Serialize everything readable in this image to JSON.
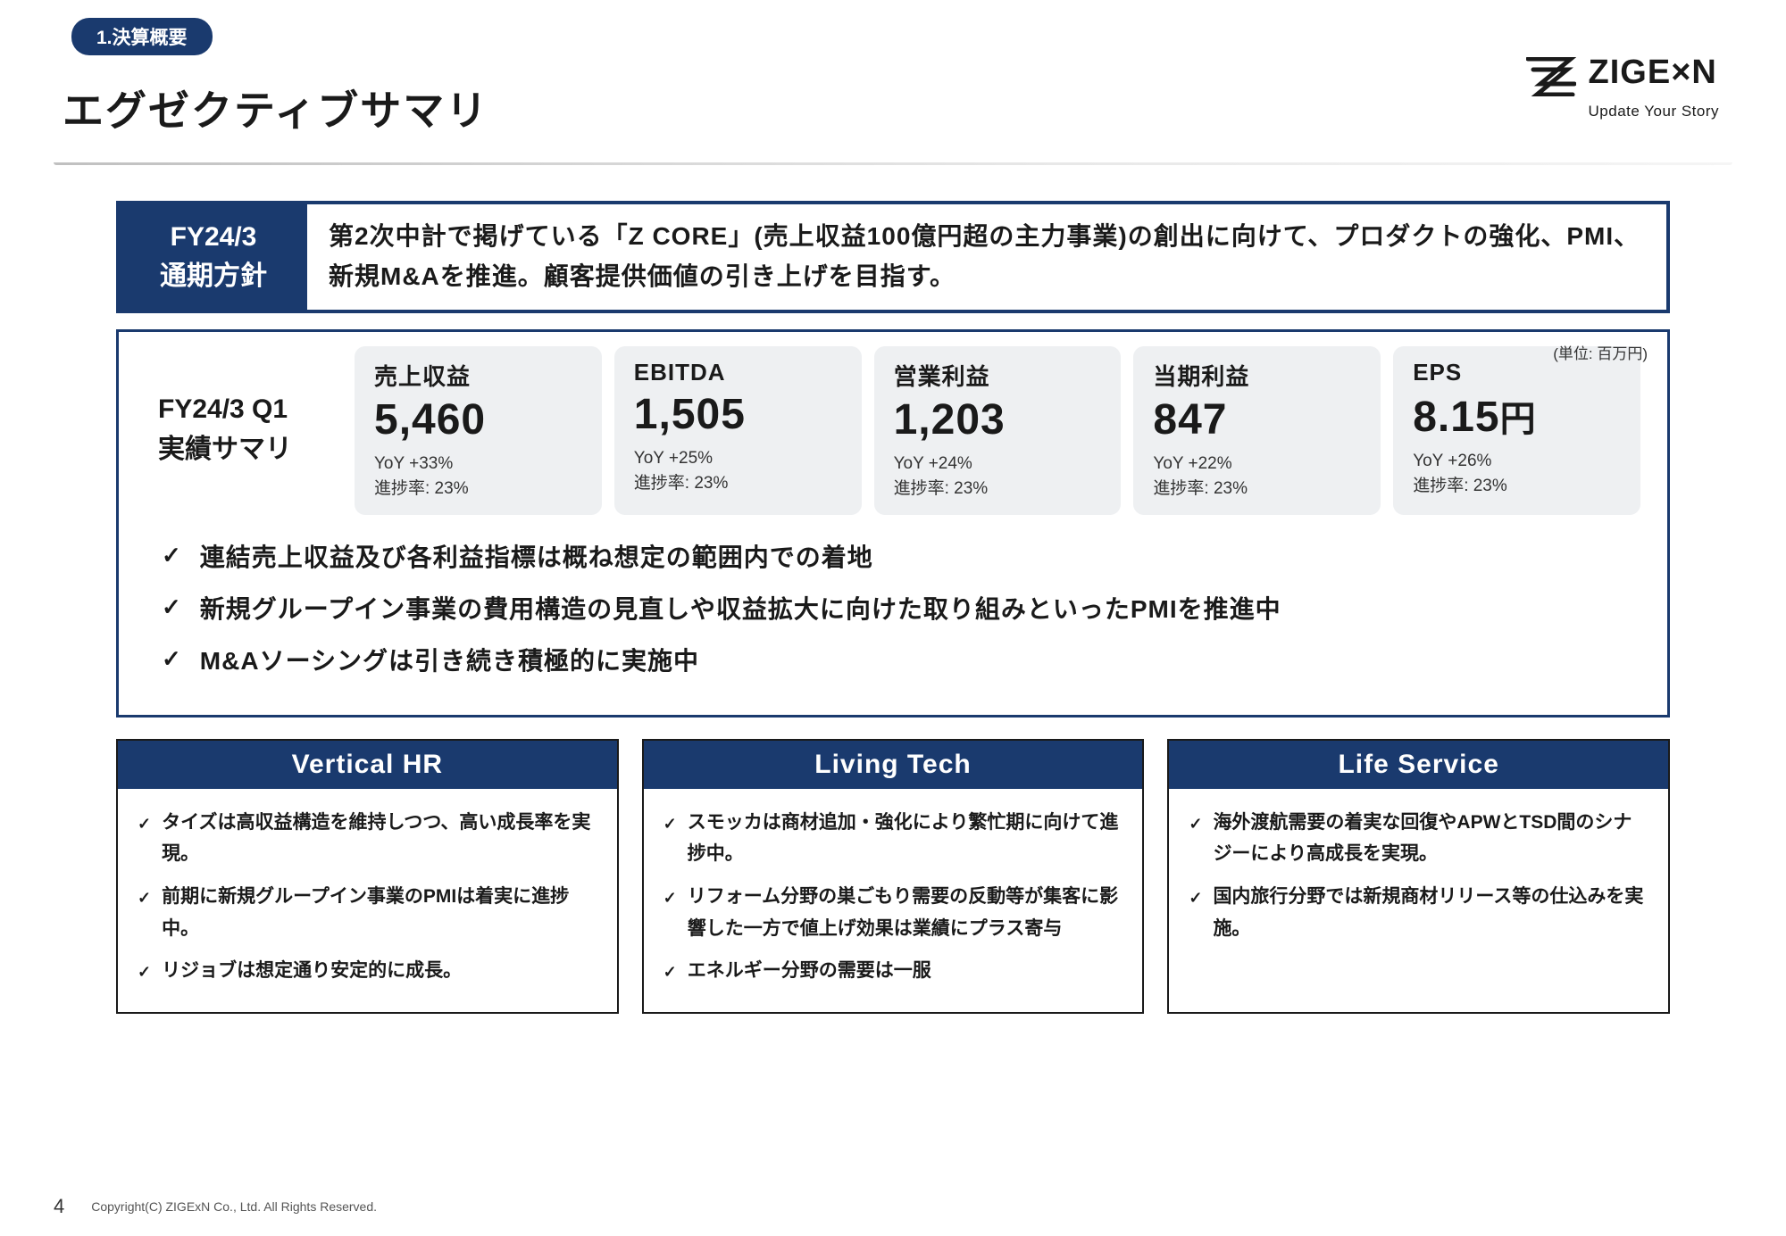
{
  "section_tag": "1.決算概要",
  "page_title": "エグゼクティブサマリ",
  "logo": {
    "brand": "ZIGE×N",
    "tagline": "Update Your Story"
  },
  "policy": {
    "label_line1": "FY24/3",
    "label_line2": "通期方針",
    "text": "第2次中計で掲げている「Z CORE」(売上収益100億円超の主力事業)の創出に向けて、プロダクトの強化、PMI、新規M&Aを推進。顧客提供価値の引き上げを目指す。"
  },
  "unit_note": "(単位: 百万円)",
  "summary": {
    "label_line1": "FY24/3 Q1",
    "label_line2": "実績サマリ",
    "metrics": [
      {
        "title": "売上収益",
        "value": "5,460",
        "unit": "",
        "yoy": "YoY +33%",
        "progress": "進捗率: 23%"
      },
      {
        "title": "EBITDA",
        "value": "1,505",
        "unit": "",
        "yoy": "YoY +25%",
        "progress": "進捗率: 23%"
      },
      {
        "title": "営業利益",
        "value": "1,203",
        "unit": "",
        "yoy": "YoY +24%",
        "progress": "進捗率: 23%"
      },
      {
        "title": "当期利益",
        "value": "847",
        "unit": "",
        "yoy": "YoY +22%",
        "progress": "進捗率: 23%"
      },
      {
        "title": "EPS",
        "value": "8.15",
        "unit": "円",
        "yoy": "YoY +26%",
        "progress": "進捗率: 23%"
      }
    ],
    "bullets": [
      "連結売上収益及び各利益指標は概ね想定の範囲内での着地",
      "新規グループイン事業の費用構造の見直しや収益拡大に向けた取り組みといったPMIを推進中",
      "M&Aソーシングは引き続き積極的に実施中"
    ]
  },
  "columns": [
    {
      "title": "Vertical HR",
      "items": [
        "タイズは高収益構造を維持しつつ、高い成長率を実現。",
        "前期に新規グループイン事業のPMIは着実に進捗中。",
        "リジョブは想定通り安定的に成長。"
      ]
    },
    {
      "title": "Living Tech",
      "items": [
        "スモッカは商材追加・強化により繁忙期に向けて進捗中。",
        "リフォーム分野の巣ごもり需要の反動等が集客に影響した一方で値上げ効果は業績にプラス寄与",
        "エネルギー分野の需要は一服"
      ]
    },
    {
      "title": "Life Service",
      "items": [
        "海外渡航需要の着実な回復やAPWとTSD間のシナジーにより高成長を実現。",
        "国内旅行分野では新規商材リリース等の仕込みを実施。"
      ]
    }
  ],
  "footer": {
    "page_num": "4",
    "copyright": "Copyright(C) ZIGExN Co., Ltd. All Rights Reserved."
  },
  "colors": {
    "primary": "#1a3a6e",
    "card_bg": "#eef0f2",
    "text": "#1a1a1a"
  }
}
